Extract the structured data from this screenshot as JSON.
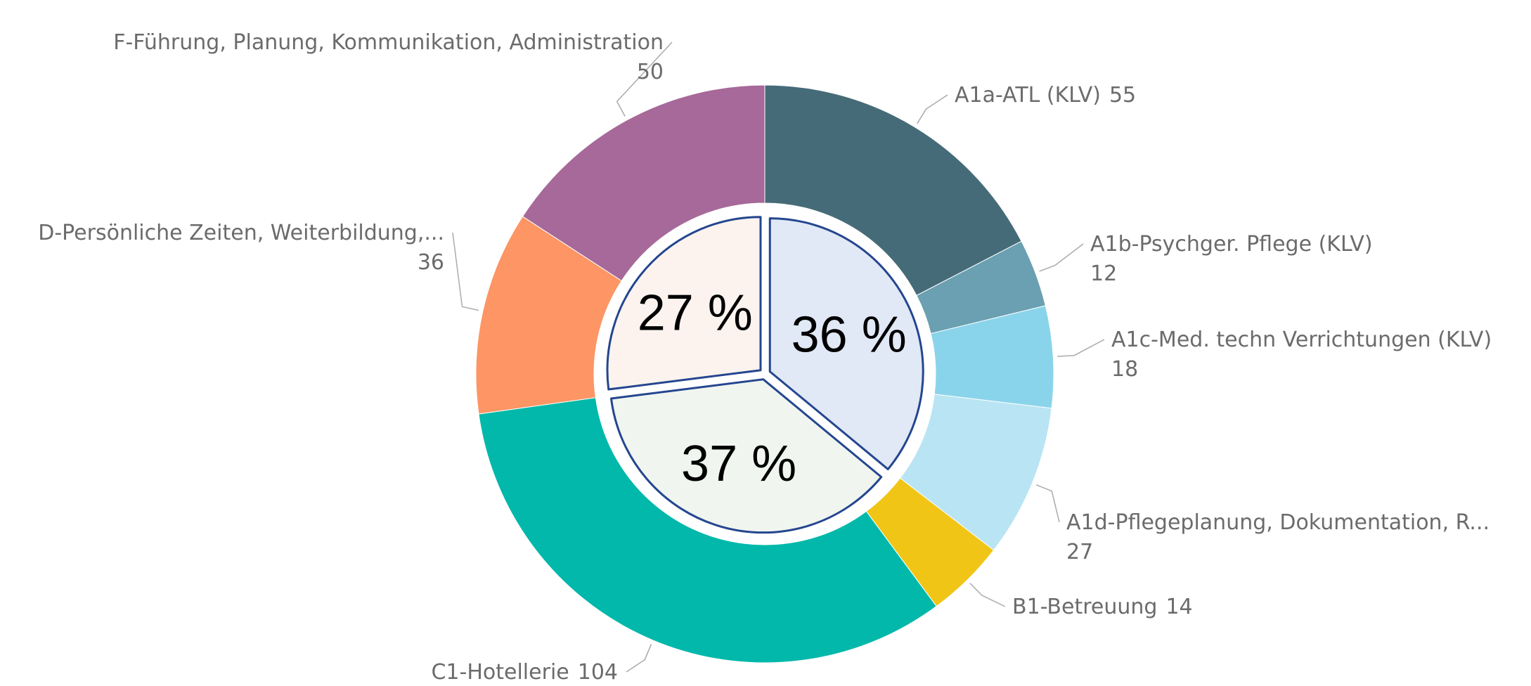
{
  "chart_data": {
    "type": "donut",
    "categories": [
      "A1a-ATL (KLV)",
      "A1b-Psychger. Pflege (KLV)",
      "A1c-Med. techn Verrichtungen (KLV)",
      "A1d-Pflegeplanung, Dokumentation, R...",
      "B1-Betreuung",
      "C1-Hotellerie",
      "D-Persönliche Zeiten, Weiterbildung,...",
      "F-Führung, Planung, Kommunikation, Administration"
    ],
    "values": [
      55,
      12,
      18,
      27,
      14,
      104,
      36,
      50
    ],
    "colors": [
      "#466b78",
      "#6aa0b1",
      "#8ad4eb",
      "#b9e4f3",
      "#f0c515",
      "#01b8aa",
      "#fd9564",
      "#a66999"
    ],
    "inner": {
      "values": [
        36,
        37,
        27
      ],
      "value_labels": [
        "36 %",
        "37 %",
        "27 %"
      ],
      "colors": [
        "#e1e8f6",
        "#f0f6ef",
        "#fcf3ee"
      ],
      "stroke": "#24468f"
    }
  }
}
